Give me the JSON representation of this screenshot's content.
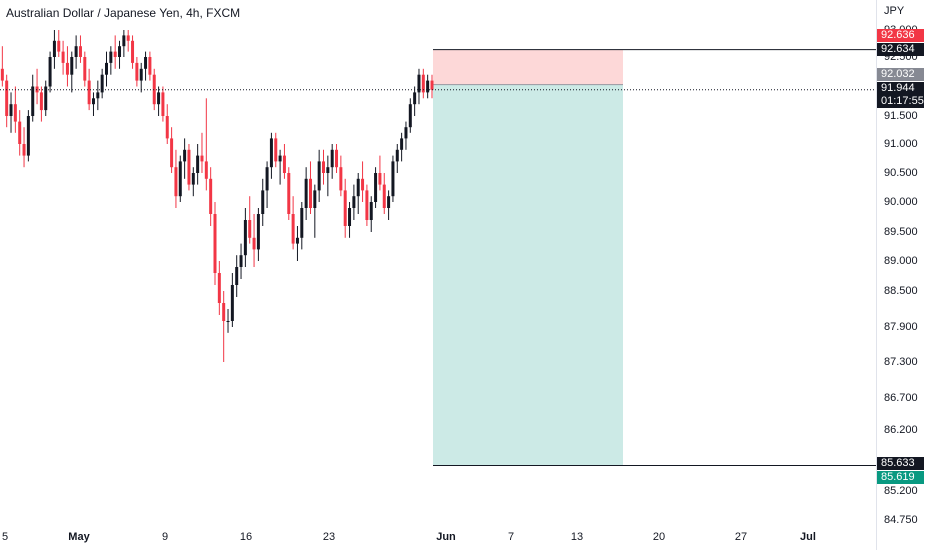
{
  "title": "Australian Dollar / Japanese Yen, 4h, FXCM",
  "price_axis": {
    "unit": "JPY",
    "ticks": [
      "93.000",
      "92.500",
      "91.500",
      "91.000",
      "90.500",
      "90.000",
      "89.500",
      "89.000",
      "88.500",
      "87.900",
      "87.300",
      "86.700",
      "86.200",
      "85.200",
      "84.750"
    ]
  },
  "time_axis": {
    "ticks": [
      {
        "label": "5",
        "bold": false
      },
      {
        "label": "May",
        "bold": true
      },
      {
        "label": "9",
        "bold": false
      },
      {
        "label": "16",
        "bold": false
      },
      {
        "label": "23",
        "bold": false
      },
      {
        "label": "Jun",
        "bold": true
      },
      {
        "label": "7",
        "bold": false
      },
      {
        "label": "13",
        "bold": false
      },
      {
        "label": "20",
        "bold": false
      },
      {
        "label": "27",
        "bold": false
      },
      {
        "label": "Jul",
        "bold": true
      }
    ]
  },
  "tags": {
    "stop_top": {
      "value": "92.636",
      "color": "#f23645"
    },
    "stop_line": {
      "value": "92.634",
      "color": "#131722"
    },
    "entry": {
      "value": "92.032",
      "color": "#868993"
    },
    "last": {
      "value": "91.944",
      "countdown": "01:17:55",
      "color": "#131722"
    },
    "target_line": {
      "value": "85.633",
      "color": "#131722"
    },
    "target": {
      "value": "85.619",
      "color": "#089981"
    }
  },
  "colors": {
    "up": "#131722",
    "down": "#f23645",
    "stop_zone": "#fdd8d8",
    "profit_zone": "#cceae6"
  },
  "chart_data": {
    "type": "candlestick",
    "title": "Australian Dollar / Japanese Yen, 4h, FXCM",
    "ylabel": "JPY",
    "ylim": [
      84.6,
      93.1
    ],
    "x_ticks": [
      "5",
      "May",
      "9",
      "16",
      "23",
      "Jun",
      "7",
      "13",
      "20",
      "27",
      "Jul"
    ],
    "position": {
      "type": "short",
      "stop": 92.636,
      "entry": 92.032,
      "target": 85.619,
      "start": "May 31",
      "end": "Jun 17"
    },
    "last_price": 91.944,
    "countdown": "01:17:55",
    "series": [
      {
        "values": [
          [
            91.8,
            92.5,
            91.6,
            92.3
          ],
          [
            92.3,
            92.7,
            92.0,
            92.1
          ],
          [
            92.1,
            92.2,
            91.3,
            91.5
          ],
          [
            91.5,
            91.9,
            91.2,
            91.7
          ],
          [
            91.7,
            92.0,
            91.2,
            91.4
          ],
          [
            91.4,
            91.6,
            90.8,
            91.0
          ],
          [
            91.0,
            91.3,
            90.6,
            90.8
          ],
          [
            90.8,
            91.6,
            90.7,
            91.5
          ],
          [
            91.5,
            92.2,
            91.4,
            92.0
          ],
          [
            92.0,
            92.3,
            91.7,
            91.9
          ],
          [
            91.9,
            92.0,
            91.4,
            91.6
          ],
          [
            91.6,
            92.1,
            91.5,
            92.0
          ],
          [
            92.0,
            92.6,
            91.9,
            92.5
          ],
          [
            92.5,
            93.0,
            92.3,
            92.8
          ],
          [
            92.8,
            93.0,
            92.5,
            92.6
          ],
          [
            92.6,
            92.8,
            92.2,
            92.4
          ],
          [
            92.4,
            92.7,
            92.0,
            92.2
          ],
          [
            92.2,
            92.6,
            91.9,
            92.5
          ],
          [
            92.5,
            92.9,
            92.3,
            92.7
          ],
          [
            92.7,
            92.9,
            92.4,
            92.5
          ],
          [
            92.5,
            92.6,
            92.0,
            92.1
          ],
          [
            92.1,
            92.3,
            91.6,
            91.7
          ],
          [
            91.7,
            91.9,
            91.5,
            91.8
          ],
          [
            91.8,
            92.1,
            91.6,
            91.9
          ],
          [
            91.9,
            92.3,
            91.8,
            92.2
          ],
          [
            92.2,
            92.6,
            92.0,
            92.4
          ],
          [
            92.4,
            92.7,
            92.2,
            92.6
          ],
          [
            92.6,
            92.9,
            92.3,
            92.5
          ],
          [
            92.5,
            92.8,
            92.3,
            92.7
          ],
          [
            92.7,
            93.0,
            92.5,
            92.9
          ],
          [
            92.9,
            93.0,
            92.6,
            92.8
          ],
          [
            92.8,
            92.9,
            92.3,
            92.4
          ],
          [
            92.4,
            92.5,
            92.0,
            92.1
          ],
          [
            92.1,
            92.4,
            91.9,
            92.3
          ],
          [
            92.3,
            92.6,
            92.1,
            92.5
          ],
          [
            92.5,
            92.6,
            92.1,
            92.2
          ],
          [
            92.2,
            92.3,
            91.6,
            91.7
          ],
          [
            91.7,
            92.0,
            91.5,
            91.9
          ],
          [
            91.9,
            92.0,
            91.4,
            91.5
          ],
          [
            91.5,
            91.7,
            91.0,
            91.1
          ],
          [
            91.1,
            91.3,
            90.5,
            90.6
          ],
          [
            90.6,
            90.9,
            89.9,
            90.1
          ],
          [
            90.1,
            90.8,
            90.0,
            90.7
          ],
          [
            90.7,
            91.1,
            90.4,
            90.9
          ],
          [
            90.9,
            91.0,
            90.2,
            90.3
          ],
          [
            90.3,
            90.6,
            90.1,
            90.5
          ],
          [
            90.5,
            91.0,
            90.3,
            90.8
          ],
          [
            90.8,
            91.2,
            90.5,
            90.7
          ],
          [
            90.7,
            91.8,
            90.2,
            90.4
          ],
          [
            90.4,
            90.6,
            89.6,
            89.8
          ],
          [
            89.8,
            90.0,
            88.6,
            88.8
          ],
          [
            88.8,
            89.0,
            88.1,
            88.3
          ],
          [
            88.3,
            88.5,
            87.3,
            88.0
          ],
          [
            88.0,
            88.2,
            87.8,
            88.0
          ],
          [
            88.0,
            88.8,
            87.9,
            88.6
          ],
          [
            88.6,
            89.1,
            88.4,
            88.9
          ],
          [
            88.9,
            89.3,
            88.7,
            89.1
          ],
          [
            89.1,
            89.9,
            88.9,
            89.7
          ],
          [
            89.7,
            90.1,
            89.3,
            89.4
          ],
          [
            89.4,
            89.8,
            88.9,
            89.2
          ],
          [
            89.2,
            89.9,
            89.0,
            89.8
          ],
          [
            89.8,
            90.4,
            89.6,
            90.2
          ],
          [
            90.2,
            90.7,
            89.9,
            90.6
          ],
          [
            90.6,
            91.2,
            90.4,
            91.1
          ],
          [
            91.1,
            91.2,
            90.6,
            90.7
          ],
          [
            90.7,
            90.9,
            90.3,
            90.8
          ],
          [
            90.8,
            91.0,
            90.4,
            90.5
          ],
          [
            90.5,
            90.6,
            89.7,
            89.8
          ],
          [
            89.8,
            90.1,
            89.2,
            89.3
          ],
          [
            89.3,
            89.6,
            89.0,
            89.4
          ],
          [
            89.4,
            90.0,
            89.2,
            89.9
          ],
          [
            89.9,
            90.6,
            89.7,
            90.4
          ],
          [
            90.4,
            90.7,
            89.8,
            89.9
          ],
          [
            89.9,
            90.3,
            89.4,
            90.2
          ],
          [
            90.2,
            90.9,
            90.0,
            90.7
          ],
          [
            90.7,
            90.9,
            90.3,
            90.5
          ],
          [
            90.5,
            90.8,
            90.1,
            90.6
          ],
          [
            90.6,
            91.0,
            90.4,
            90.9
          ],
          [
            90.9,
            91.0,
            90.5,
            90.6
          ],
          [
            90.6,
            90.8,
            90.1,
            90.2
          ],
          [
            90.2,
            90.4,
            89.4,
            89.6
          ],
          [
            89.6,
            90.0,
            89.4,
            89.9
          ],
          [
            89.9,
            90.3,
            89.7,
            90.1
          ],
          [
            90.1,
            90.5,
            89.8,
            90.4
          ],
          [
            90.4,
            90.7,
            90.0,
            90.2
          ],
          [
            90.2,
            90.3,
            89.6,
            89.7
          ],
          [
            89.7,
            90.1,
            89.5,
            90.0
          ],
          [
            90.0,
            90.6,
            89.9,
            90.5
          ],
          [
            90.5,
            90.8,
            90.2,
            90.3
          ],
          [
            90.3,
            90.5,
            89.8,
            89.9
          ],
          [
            89.9,
            90.2,
            89.7,
            90.1
          ],
          [
            90.1,
            90.8,
            90.0,
            90.7
          ],
          [
            90.7,
            91.0,
            90.5,
            90.9
          ],
          [
            90.9,
            91.2,
            90.7,
            91.1
          ],
          [
            91.1,
            91.4,
            90.9,
            91.3
          ],
          [
            91.3,
            91.8,
            91.2,
            91.7
          ],
          [
            91.7,
            92.0,
            91.5,
            91.9
          ],
          [
            91.9,
            92.3,
            91.7,
            92.2
          ],
          [
            92.2,
            92.3,
            91.8,
            91.9
          ],
          [
            91.9,
            92.2,
            91.8,
            92.1
          ],
          [
            92.1,
            92.2,
            91.8,
            91.944
          ]
        ]
      }
    ]
  }
}
